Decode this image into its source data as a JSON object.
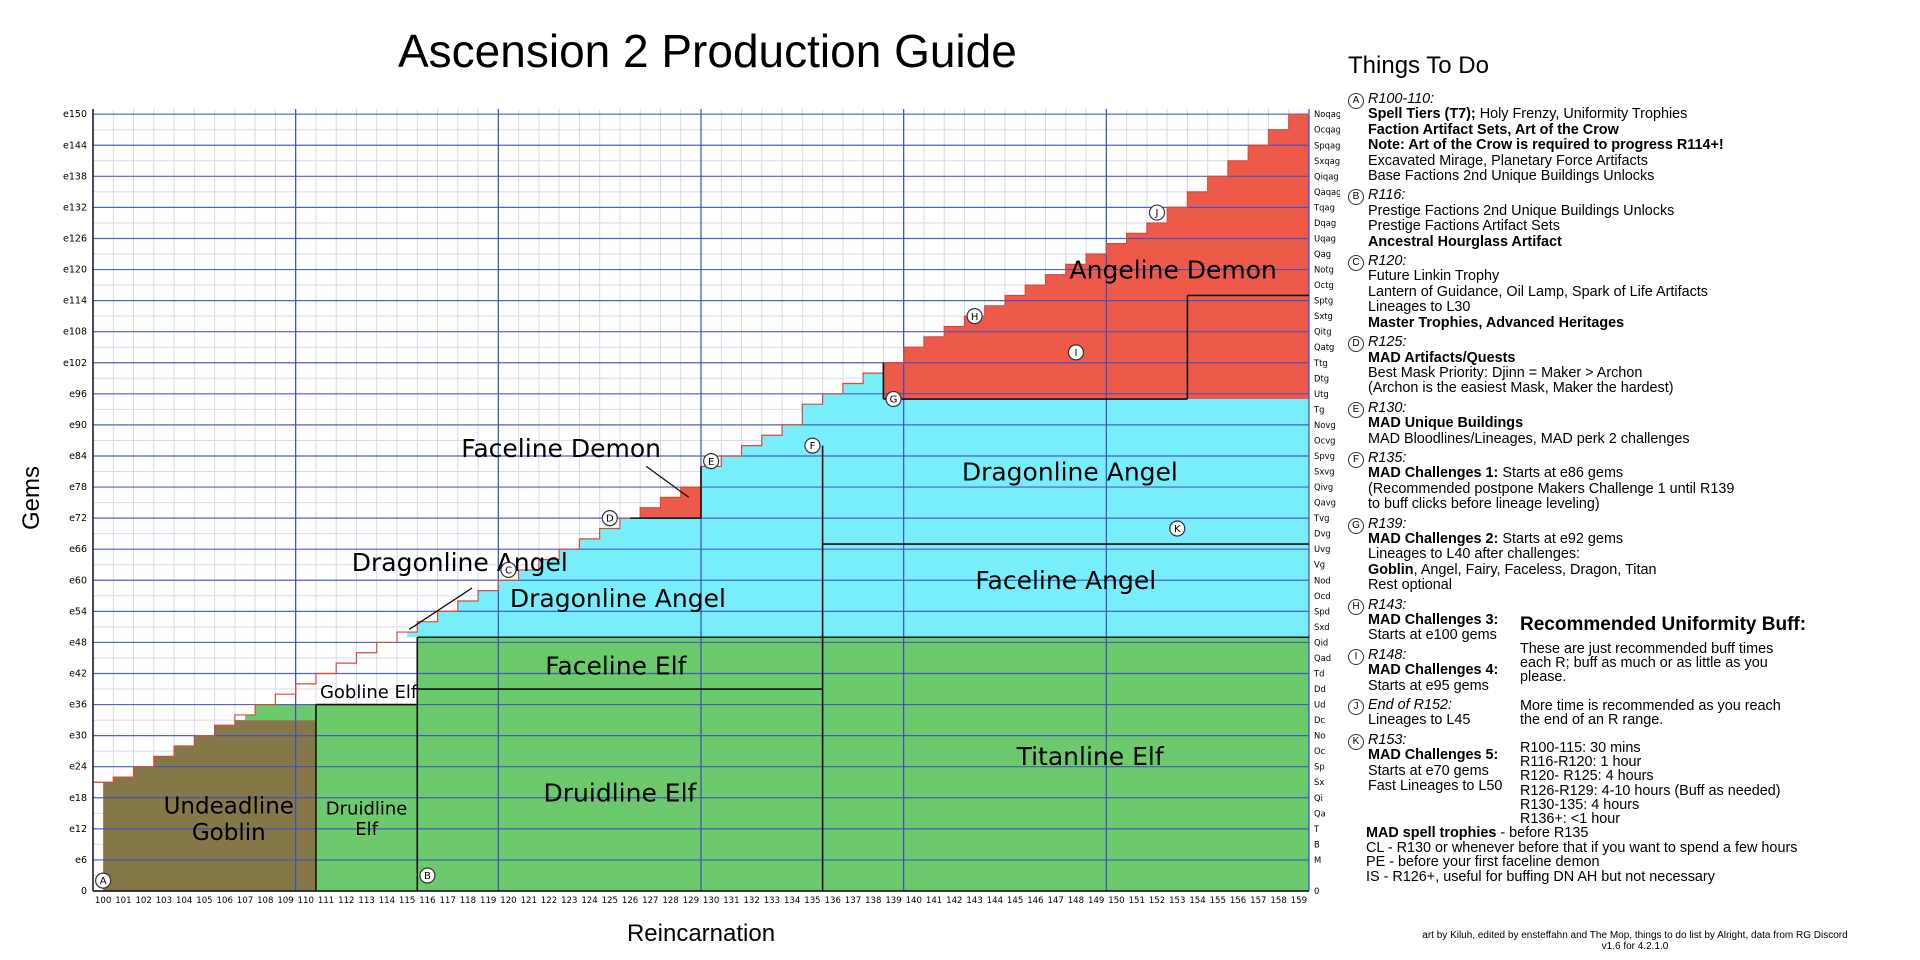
{
  "title": "Ascension 2 Production Guide",
  "colors": {
    "undeadline": "#857848",
    "elf": "#6cc96c",
    "angel": "#78eefa",
    "demon": "#ee5a4a",
    "major_grid": "#3a4bc6",
    "minor_grid": "#d6d8f2"
  },
  "chart_data": {
    "type": "area",
    "xlabel": "Reincarnation",
    "ylabel": "Gems",
    "x_range": [
      100,
      159
    ],
    "x_ticks": [
      "100",
      "101",
      "102",
      "103",
      "104",
      "105",
      "106",
      "107",
      "108",
      "109",
      "110",
      "111",
      "112",
      "113",
      "114",
      "115",
      "116",
      "117",
      "118",
      "119",
      "120",
      "121",
      "122",
      "123",
      "124",
      "125",
      "126",
      "127",
      "128",
      "129",
      "130",
      "131",
      "132",
      "133",
      "134",
      "135",
      "136",
      "137",
      "138",
      "139",
      "140",
      "141",
      "142",
      "143",
      "144",
      "145",
      "146",
      "147",
      "148",
      "149",
      "150",
      "151",
      "152",
      "153",
      "154",
      "155",
      "156",
      "157",
      "158",
      "159"
    ],
    "y_range_exponent": [
      0,
      151
    ],
    "y_ticks_left": [
      "e150",
      "e144",
      "e138",
      "e132",
      "e126",
      "e120",
      "e114",
      "e108",
      "e102",
      "e96",
      "e90",
      "e84",
      "e78",
      "e72",
      "e66",
      "e60",
      "e54",
      "e48",
      "e42",
      "e36",
      "e30",
      "e24",
      "e18",
      "e12",
      "e6",
      "0"
    ],
    "y_ticks_right": [
      "Noqag",
      "Ocqag",
      "Spqag",
      "Sxqag",
      "Qiqag",
      "Qaqag",
      "Tqag",
      "Dqag",
      "Uqag",
      "Qag",
      "Notg",
      "Octg",
      "Sptg",
      "Sxtg",
      "Qitg",
      "Qatg",
      "Ttg",
      "Dtg",
      "Utg",
      "Tg",
      "Novg",
      "Ocvg",
      "Spvg",
      "Sxvg",
      "Qivg",
      "Qavg",
      "Tvg",
      "Dvg",
      "Uvg",
      "Vg",
      "Nod",
      "Ocd",
      "Spd",
      "Sxd",
      "Qid",
      "Qad",
      "Td",
      "Dd",
      "Ud",
      "Dc",
      "No",
      "Oc",
      "Sp",
      "Sx",
      "Qi",
      "Qa",
      "T",
      "B",
      "M",
      "0"
    ],
    "max_gems_exponent": [
      21,
      22,
      24,
      26,
      28,
      30,
      32,
      34,
      36,
      38,
      40,
      42,
      44,
      46,
      48,
      50,
      52,
      54,
      56,
      58,
      60,
      62,
      64,
      66,
      68,
      70,
      72,
      74,
      76,
      78,
      82,
      84,
      86,
      88,
      90,
      94,
      96,
      98,
      100,
      102,
      105,
      107,
      109,
      111,
      113,
      115,
      117,
      119,
      121,
      123,
      125,
      127,
      129,
      132,
      135,
      138,
      141,
      144,
      147,
      150
    ],
    "regions": [
      {
        "name": "Undeadline Goblin",
        "color": "undeadline",
        "x": [
          100,
          110.5
        ],
        "top_exponent": 33
      },
      {
        "name": "Gobline Elf",
        "color": "elf",
        "x": [
          107,
          115
        ],
        "range_exponent": [
          33,
          36
        ]
      },
      {
        "name": "Druidline Elf",
        "color": "elf",
        "x": [
          110.5,
          115.5
        ],
        "range_exponent": [
          0,
          36
        ]
      },
      {
        "name": "Druidline Elf",
        "color": "elf",
        "x": [
          115.5,
          135.5
        ],
        "range_exponent": [
          0,
          39
        ]
      },
      {
        "name": "Faceline Elf",
        "color": "elf",
        "x": [
          115.5,
          135.5
        ],
        "range_exponent": [
          39,
          49
        ]
      },
      {
        "name": "Titanline Elf",
        "color": "elf",
        "x": [
          135.5,
          159.5
        ],
        "range_exponent": [
          0,
          49
        ]
      },
      {
        "name": "Dragonline Angel",
        "color": "angel",
        "x": [
          115,
          135.5
        ],
        "range_exponent": [
          49,
          95
        ]
      },
      {
        "name": "Faceline Angel",
        "color": "angel",
        "x": [
          135.5,
          159.5
        ],
        "range_exponent": [
          49,
          67
        ]
      },
      {
        "name": "Dragonline Angel",
        "color": "angel",
        "x": [
          135.5,
          159.5
        ],
        "range_exponent": [
          67,
          115
        ]
      },
      {
        "name": "Faceline Demon",
        "color": "demon",
        "x": [
          126,
          129.5
        ],
        "range_exponent": [
          72,
          82
        ]
      },
      {
        "name": "Angeline Demon",
        "color": "demon",
        "x": [
          138.5,
          159.5
        ],
        "range_exponent": [
          95,
          151
        ]
      }
    ],
    "region_labels": [
      {
        "text": "Undeadline Goblin",
        "x": 106.2,
        "y": 14
      },
      {
        "text": "Gobline Elf",
        "x": 113.1,
        "y": 38.5
      },
      {
        "text": "Druidline Elf",
        "x": 113,
        "y": 14
      },
      {
        "text": "Druidline Elf",
        "x": 125.5,
        "y": 19
      },
      {
        "text": "Faceline Elf",
        "x": 125.3,
        "y": 43.5
      },
      {
        "text": "Dragonline Angel",
        "x": 125.4,
        "y": 56.5
      },
      {
        "text": "Dragonline Angel",
        "x": 117.6,
        "y": 63.5
      },
      {
        "text": "Faceline Demon",
        "x": 122.6,
        "y": 85.5
      },
      {
        "text": "Dragonline Angel",
        "x": 147.7,
        "y": 81
      },
      {
        "text": "Faceline Angel",
        "x": 147.5,
        "y": 60
      },
      {
        "text": "Angeline Demon",
        "x": 152.8,
        "y": 120
      },
      {
        "text": "Titanline Elf",
        "x": 148.7,
        "y": 26
      }
    ],
    "markers": [
      {
        "id": "A",
        "x": 100,
        "y": 2
      },
      {
        "id": "B",
        "x": 116,
        "y": 3
      },
      {
        "id": "C",
        "x": 120,
        "y": 62
      },
      {
        "id": "D",
        "x": 125,
        "y": 72
      },
      {
        "id": "E",
        "x": 130,
        "y": 83
      },
      {
        "id": "F",
        "x": 135,
        "y": 86
      },
      {
        "id": "G",
        "x": 139,
        "y": 95
      },
      {
        "id": "H",
        "x": 143,
        "y": 111
      },
      {
        "id": "I",
        "x": 148,
        "y": 104
      },
      {
        "id": "J",
        "x": 152,
        "y": 131
      },
      {
        "id": "K",
        "x": 153,
        "y": 70
      }
    ]
  },
  "todo": {
    "title": "Things To Do",
    "items": [
      {
        "id": "A",
        "range": "R100-110:",
        "lines": [
          {
            "b": "Spell Tiers (T7);",
            "t": " Holy Frenzy, Uniformity Trophies"
          },
          {
            "b": "Faction Artifact Sets, Art of the Crow",
            "t": ""
          },
          {
            "b": "Note: Art of the Crow is required to progress R114+!",
            "t": ""
          },
          {
            "b": "",
            "t": "Excavated Mirage, Planetary Force Artifacts"
          },
          {
            "b": "",
            "t": "Base Factions 2nd Unique Buildings Unlocks"
          }
        ]
      },
      {
        "id": "B",
        "range": "R116:",
        "lines": [
          {
            "b": "",
            "t": "Prestige Factions 2nd Unique Buildings Unlocks"
          },
          {
            "b": "",
            "t": "Prestige Factions Artifact Sets"
          },
          {
            "b": "Ancestral Hourglass Artifact",
            "t": ""
          }
        ]
      },
      {
        "id": "C",
        "range": "R120:",
        "lines": [
          {
            "b": "",
            "t": "Future Linkin Trophy"
          },
          {
            "b": "",
            "t": "Lantern of Guidance, Oil Lamp, Spark of Life Artifacts"
          },
          {
            "b": "",
            "t": "Lineages to L30"
          },
          {
            "b": "Master Trophies, Advanced Heritages",
            "t": ""
          }
        ]
      },
      {
        "id": "D",
        "range": "R125:",
        "lines": [
          {
            "b": "MAD Artifacts/Quests",
            "t": ""
          },
          {
            "b": "",
            "t": "Best Mask Priority: Djinn = Maker > Archon"
          },
          {
            "b": "",
            "t": "(Archon is the easiest Mask, Maker the hardest)"
          }
        ]
      },
      {
        "id": "E",
        "range": "R130:",
        "lines": [
          {
            "b": "MAD Unique Buildings",
            "t": ""
          },
          {
            "b": "",
            "t": "MAD Bloodlines/Lineages, MAD perk 2 challenges"
          }
        ]
      },
      {
        "id": "F",
        "range": "R135:",
        "lines": [
          {
            "b": "MAD Challenges 1:",
            "t": " Starts at e86 gems"
          },
          {
            "b": "",
            "t": "(Recommended postpone Makers Challenge 1 until R139"
          },
          {
            "b": "",
            "t": "  to buff clicks before lineage leveling)"
          }
        ]
      },
      {
        "id": "G",
        "range": "R139:",
        "lines": [
          {
            "b": "MAD Challenges 2:",
            "t": " Starts at e92 gems"
          },
          {
            "b": "",
            "t": "Lineages to L40 after challenges:"
          },
          {
            "b": "Goblin",
            "t": ", Angel, Fairy, Faceless, Dragon, Titan"
          },
          {
            "b": "",
            "t": "Rest optional"
          }
        ]
      },
      {
        "id": "H",
        "range": "R143:",
        "lines": [
          {
            "b": "MAD Challenges 3:",
            "t": ""
          },
          {
            "b": "",
            "t": "Starts at e100 gems"
          }
        ]
      },
      {
        "id": "I",
        "range": "R148:",
        "lines": [
          {
            "b": "MAD Challenges 4:",
            "t": ""
          },
          {
            "b": "",
            "t": "Starts at e95 gems"
          }
        ]
      },
      {
        "id": "J",
        "range": "End of R152:",
        "lines": [
          {
            "b": "",
            "t": "Lineages to L45"
          }
        ]
      },
      {
        "id": "K",
        "range": "R153:",
        "lines": [
          {
            "b": "MAD Challenges 5:",
            "t": ""
          },
          {
            "b": "",
            "t": "Starts at e70 gems"
          },
          {
            "b": "",
            "t": "Fast Lineages to L50"
          }
        ]
      }
    ]
  },
  "buff": {
    "title": "Recommended Uniformity Buff:",
    "lines": [
      "These are just recommended buff times",
      "each R; buff as much or as little as you",
      "please.",
      "",
      "More time is recommended as you reach",
      "the end of an R range.",
      "",
      "R100-115: 30 mins",
      "R116-R120: 1 hour",
      "R120- R125: 4 hours",
      "R126-R129: 4-10 hours (Buff as needed)",
      "R130-135: 4 hours",
      "R136+: <1 hour"
    ]
  },
  "mad": {
    "lines": [
      {
        "b": "MAD spell trophies",
        "t": " - before R135"
      },
      {
        "b": "",
        "t": "CL - R130 or whenever before that if you want to spend a few hours"
      },
      {
        "b": "",
        "t": "PE - before your first faceline demon"
      },
      {
        "b": "",
        "t": "IS - R126+, useful for buffing DN AH but not necessary"
      }
    ]
  },
  "credit": {
    "line1": "art by Kiluh, edited by ensteffahn and The Mop, things to do list by Alright, data from RG Discord",
    "line2": "v1.6 for 4.2.1.0"
  }
}
